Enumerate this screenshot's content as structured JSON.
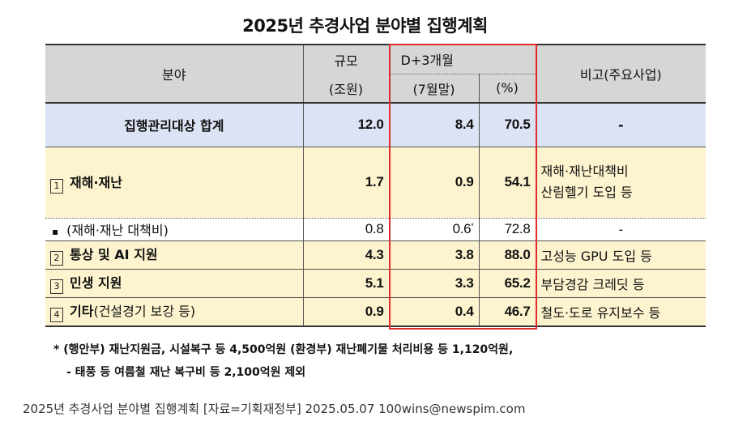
{
  "title": "2025년 추경사업 분야별 집행계획",
  "header": {
    "field": "분야",
    "scale_line1": "규모",
    "scale_line2": "(조원)",
    "d3_line1": "D+3개월",
    "d3_line2": "(7월말)",
    "pct": "(%)",
    "remarks": "비고(주요사업)"
  },
  "rows": [
    {
      "label": "집행관리대상 합계",
      "scale": "12.0",
      "d3": "8.4",
      "pct": "70.5",
      "remarks": "-"
    },
    {
      "num": "1",
      "label": "재해·재난",
      "scale": "1.7",
      "d3": "0.9",
      "pct": "54.1",
      "remarks_line1": "재해·재난대책비",
      "remarks_line2": "산림헬기 도입 등"
    },
    {
      "bullet": "▪",
      "label": "(재해·재난 대책비)",
      "scale": "0.8",
      "d3": "0.6",
      "d3_mark": "*",
      "pct": "72.8",
      "remarks": "-"
    },
    {
      "num": "2",
      "label": "통상 및 AI 지원",
      "scale": "4.3",
      "d3": "3.8",
      "pct": "88.0",
      "remarks": "고성능 GPU 도입 등"
    },
    {
      "num": "3",
      "label": "민생 지원",
      "scale": "5.1",
      "d3": "3.3",
      "pct": "65.2",
      "remarks": "부담경감 크레딧 등"
    },
    {
      "num": "4",
      "label": "기타",
      "label_sub": "(건설경기 보강 등)",
      "scale": "0.9",
      "d3": "0.4",
      "pct": "46.7",
      "remarks": "철도·도로 유지보수 등"
    }
  ],
  "notes": {
    "line1": "* (행안부) 재난지원금, 시설복구 등 4,500억원 (환경부) 재난폐기물 처리비용 등 1,120억원,",
    "line2": "- 태풍 등 여름철 재난 복구비 등 2,100억원 제외"
  },
  "caption": "2025년 추경사업 분야별 집행계획 [자료=기획재정부] 2025.05.07 100wins@newspim.com",
  "colors": {
    "header_bg": "#d6d6d6",
    "total_bg": "#dce3f4",
    "row_bg": "#fdf4cf",
    "highlight_border": "#e02a2a"
  }
}
